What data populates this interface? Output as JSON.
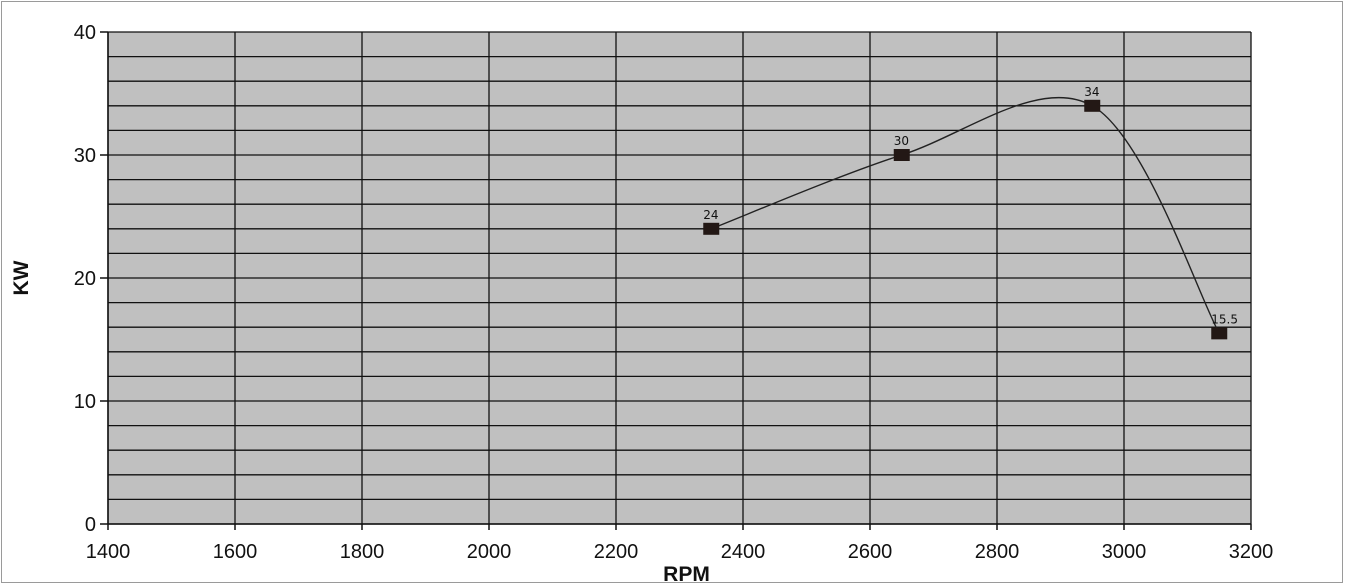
{
  "chart_data": {
    "type": "line",
    "title": "",
    "xlabel": "RPM",
    "ylabel": "KW",
    "xlim": [
      1400,
      3200
    ],
    "ylim": [
      0,
      40
    ],
    "x_ticks": [
      "1400",
      "1600",
      "1800",
      "2000",
      "2200",
      "2400",
      "2600",
      "2800",
      "3000",
      "3200"
    ],
    "y_ticks": [
      "0",
      "10",
      "20",
      "30",
      "40"
    ],
    "grid": true,
    "legend": "none",
    "plot_background": "#c0c0c0",
    "line_color": "#222222",
    "marker_color": "#231815",
    "series": [
      {
        "x": [
          2350,
          2650,
          2950,
          3150
        ],
        "y": [
          24,
          30,
          34,
          15.5
        ],
        "labels": [
          "24",
          "30",
          "34",
          "15.5"
        ]
      }
    ]
  }
}
